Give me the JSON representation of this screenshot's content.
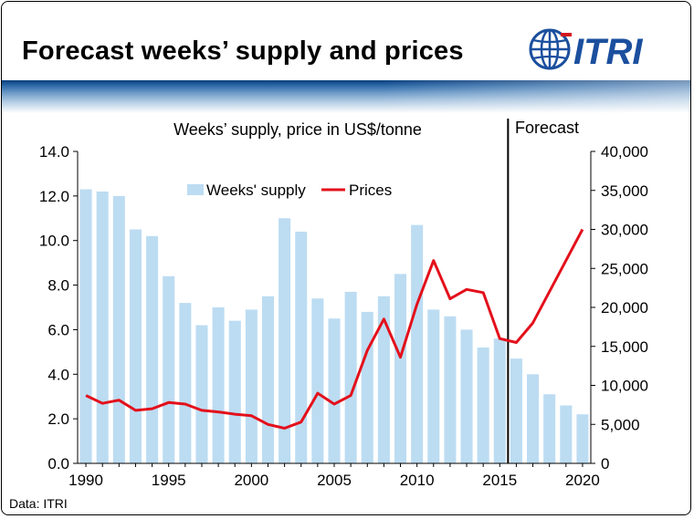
{
  "header": {
    "title": "Forecast weeks’ supply and prices",
    "logo_text": "ITRI"
  },
  "footer": {
    "source": "Data: ITRI"
  },
  "colors": {
    "bars": "#bcdcf2",
    "line": "#e3101b",
    "band_dark": "#0a3f7d",
    "logo_blue": "#1b4f9e",
    "logo_red": "#d4161f"
  },
  "chart_data": {
    "type": "bar+line",
    "axis_caption": "Weeks’ supply, price in US$/tonne",
    "forecast_label": "Forecast",
    "forecast_divider_x": 2015.5,
    "x": [
      1990,
      1991,
      1992,
      1993,
      1994,
      1995,
      1996,
      1997,
      1998,
      1999,
      2000,
      2001,
      2002,
      2003,
      2004,
      2005,
      2006,
      2007,
      2008,
      2009,
      2010,
      2011,
      2012,
      2013,
      2014,
      2015,
      2016,
      2017,
      2018,
      2019,
      2020
    ],
    "xticks": [
      1990,
      1995,
      2000,
      2005,
      2010,
      2015,
      2020
    ],
    "series": [
      {
        "name": "Weeks' supply",
        "type": "bar",
        "axis": "left",
        "values": [
          12.3,
          12.2,
          12.0,
          10.5,
          10.2,
          8.4,
          7.2,
          6.2,
          7.0,
          6.4,
          6.9,
          7.5,
          11.0,
          10.4,
          7.4,
          6.5,
          7.7,
          6.8,
          7.5,
          8.5,
          10.7,
          6.9,
          6.6,
          6.0,
          5.2,
          5.6,
          4.7,
          4.0,
          3.1,
          2.6,
          2.2
        ]
      },
      {
        "name": "Prices",
        "type": "line",
        "axis": "right",
        "values": [
          8700,
          7700,
          8100,
          6800,
          7000,
          7800,
          7600,
          6800,
          6600,
          6300,
          6100,
          5000,
          4500,
          5300,
          9000,
          7600,
          8700,
          14500,
          18500,
          13600,
          20400,
          26000,
          21100,
          22300,
          21900,
          16000,
          15500,
          18000,
          null,
          null,
          30000
        ]
      }
    ],
    "yleft": {
      "min": 0,
      "max": 14,
      "step": 2,
      "ticks": [
        "0.0",
        "2.0",
        "4.0",
        "6.0",
        "8.0",
        "10.0",
        "12.0",
        "14.0"
      ]
    },
    "yright": {
      "min": 0,
      "max": 40000,
      "step": 5000,
      "ticks": [
        "0",
        "5,000",
        "10,000",
        "15,000",
        "20,000",
        "25,000",
        "30,000",
        "35,000",
        "40,000"
      ]
    },
    "xlim": [
      1989.5,
      2020.5
    ],
    "legend_position": "top-center",
    "grid": false
  }
}
